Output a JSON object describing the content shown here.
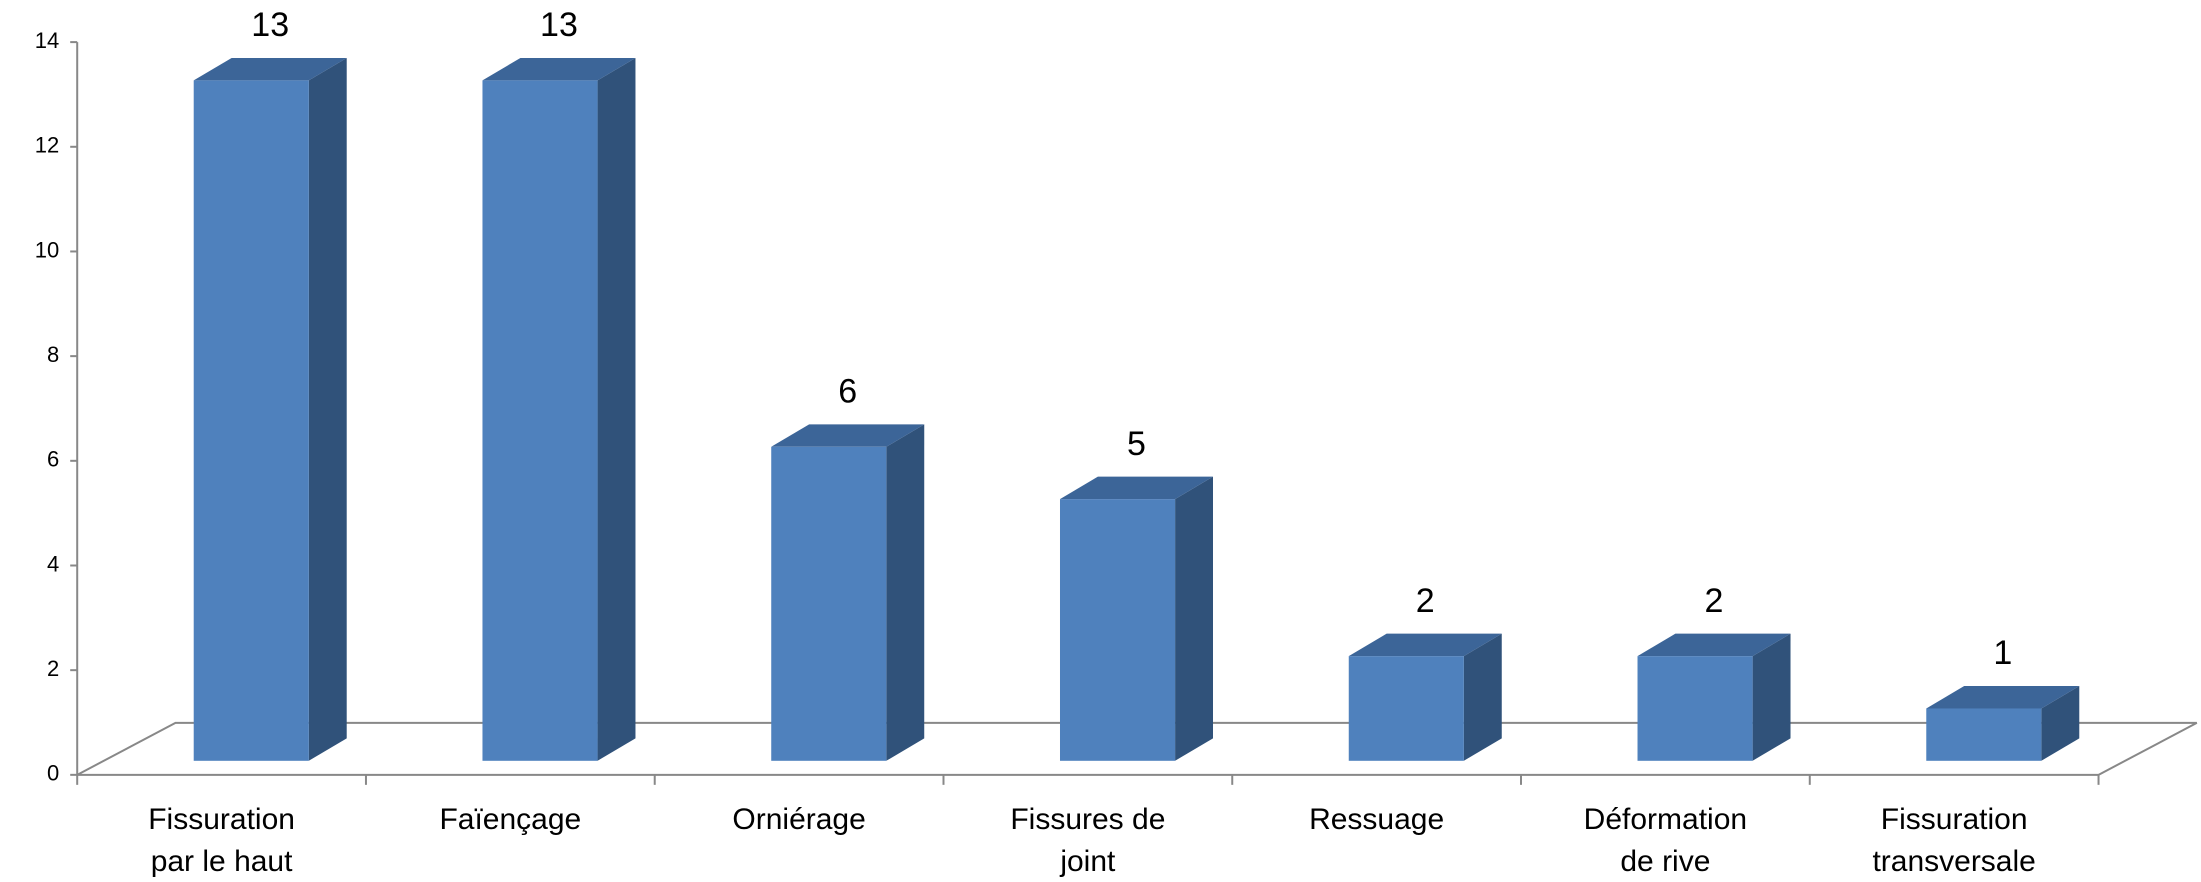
{
  "chart_data": {
    "type": "bar3d",
    "categories": [
      [
        "Fissuration",
        "par le haut"
      ],
      [
        "Faïençage"
      ],
      [
        "Orniérage"
      ],
      [
        "Fissures de",
        "joint"
      ],
      [
        "Ressuage"
      ],
      [
        "Déformation",
        "de rive"
      ],
      [
        "Fissuration",
        "transversale"
      ]
    ],
    "values": [
      13,
      13,
      6,
      5,
      2,
      2,
      1
    ],
    "color": "#4f81bd",
    "ylim": [
      0,
      14
    ],
    "yticks": [
      0,
      2,
      4,
      6,
      8,
      10,
      12,
      14
    ]
  }
}
